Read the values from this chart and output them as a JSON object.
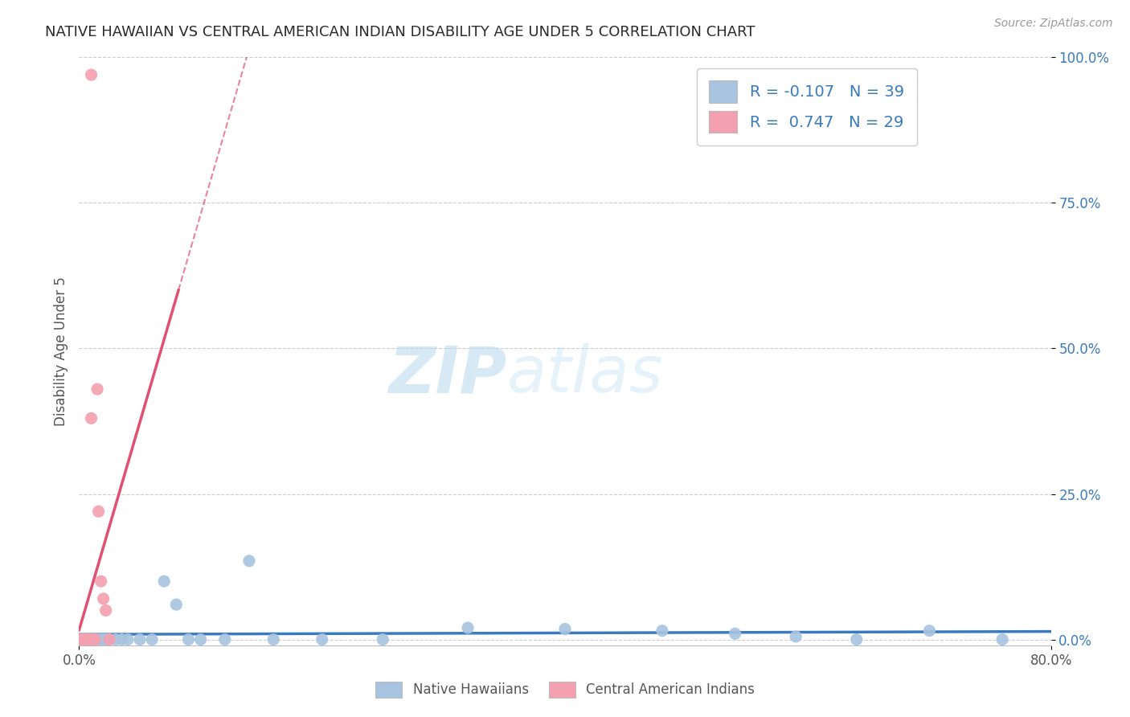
{
  "title": "NATIVE HAWAIIAN VS CENTRAL AMERICAN INDIAN DISABILITY AGE UNDER 5 CORRELATION CHART",
  "source": "Source: ZipAtlas.com",
  "ylabel": "Disability Age Under 5",
  "xlim": [
    0.0,
    0.8
  ],
  "ylim": [
    -0.01,
    1.0
  ],
  "blue_color": "#a8c4e0",
  "pink_color": "#f4a0b0",
  "blue_line_color": "#3a7abf",
  "pink_line_color": "#e05070",
  "R_blue": -0.107,
  "N_blue": 39,
  "R_pink": 0.747,
  "N_pink": 29,
  "blue_scatter_x": [
    0.001,
    0.002,
    0.003,
    0.004,
    0.005,
    0.006,
    0.007,
    0.008,
    0.009,
    0.01,
    0.011,
    0.012,
    0.015,
    0.018,
    0.02,
    0.022,
    0.025,
    0.03,
    0.035,
    0.04,
    0.05,
    0.06,
    0.07,
    0.08,
    0.09,
    0.1,
    0.12,
    0.14,
    0.16,
    0.2,
    0.25,
    0.32,
    0.4,
    0.48,
    0.54,
    0.59,
    0.64,
    0.7,
    0.76
  ],
  "blue_scatter_y": [
    0.0,
    0.0,
    0.0,
    0.0,
    0.0,
    0.0,
    0.0,
    0.0,
    0.0,
    0.0,
    0.0,
    0.0,
    0.0,
    0.0,
    0.0,
    0.0,
    0.0,
    0.0,
    0.0,
    0.0,
    0.0,
    0.0,
    0.1,
    0.06,
    0.0,
    0.0,
    0.0,
    0.135,
    0.0,
    0.0,
    0.0,
    0.02,
    0.018,
    0.015,
    0.01,
    0.005,
    0.0,
    0.015,
    0.0
  ],
  "pink_scatter_x": [
    0.001,
    0.001,
    0.001,
    0.002,
    0.002,
    0.002,
    0.003,
    0.003,
    0.004,
    0.004,
    0.005,
    0.005,
    0.005,
    0.006,
    0.006,
    0.007,
    0.008,
    0.009,
    0.01,
    0.01,
    0.01,
    0.012,
    0.013,
    0.015,
    0.016,
    0.018,
    0.02,
    0.022,
    0.025
  ],
  "pink_scatter_y": [
    0.0,
    0.0,
    0.0,
    0.0,
    0.0,
    0.0,
    0.0,
    0.0,
    0.0,
    0.0,
    0.0,
    0.0,
    0.0,
    0.0,
    0.0,
    0.0,
    0.0,
    0.0,
    0.0,
    0.38,
    0.97,
    0.0,
    0.0,
    0.43,
    0.22,
    0.1,
    0.07,
    0.05,
    0.0
  ],
  "watermark_zip": "ZIP",
  "watermark_atlas": "atlas",
  "background_color": "#ffffff",
  "grid_color": "#cccccc",
  "title_color": "#2a2a2a",
  "axis_label_color": "#555555"
}
